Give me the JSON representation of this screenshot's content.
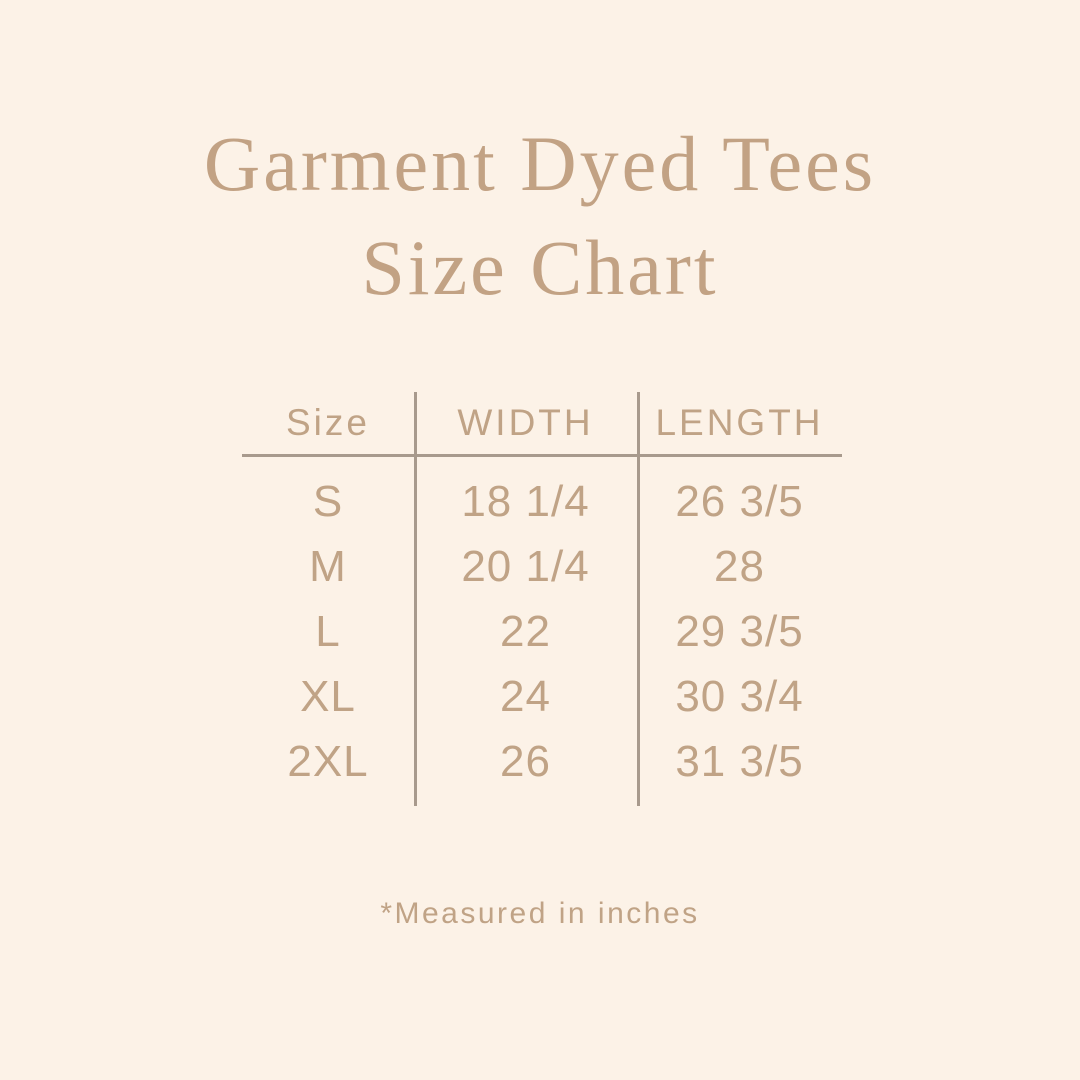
{
  "theme": {
    "bg": "#fcf2e7",
    "title": "#c2a284",
    "text": "#c0a386",
    "line": "#a89a8d"
  },
  "title": {
    "line1": "Garment Dyed Tees",
    "line2": "Size Chart"
  },
  "table": {
    "columns": [
      "Size",
      "WIDTH",
      "LENGTH"
    ],
    "rows": [
      {
        "size": "S",
        "width": "18 1/4",
        "length": "26 3/5"
      },
      {
        "size": "M",
        "width": "20 1/4",
        "length": "28"
      },
      {
        "size": "L",
        "width": "22",
        "length": "29 3/5"
      },
      {
        "size": "XL",
        "width": "24",
        "length": "30 3/4"
      },
      {
        "size": "2XL",
        "width": "26",
        "length": "31 3/5"
      }
    ]
  },
  "footnote": "*Measured in inches"
}
